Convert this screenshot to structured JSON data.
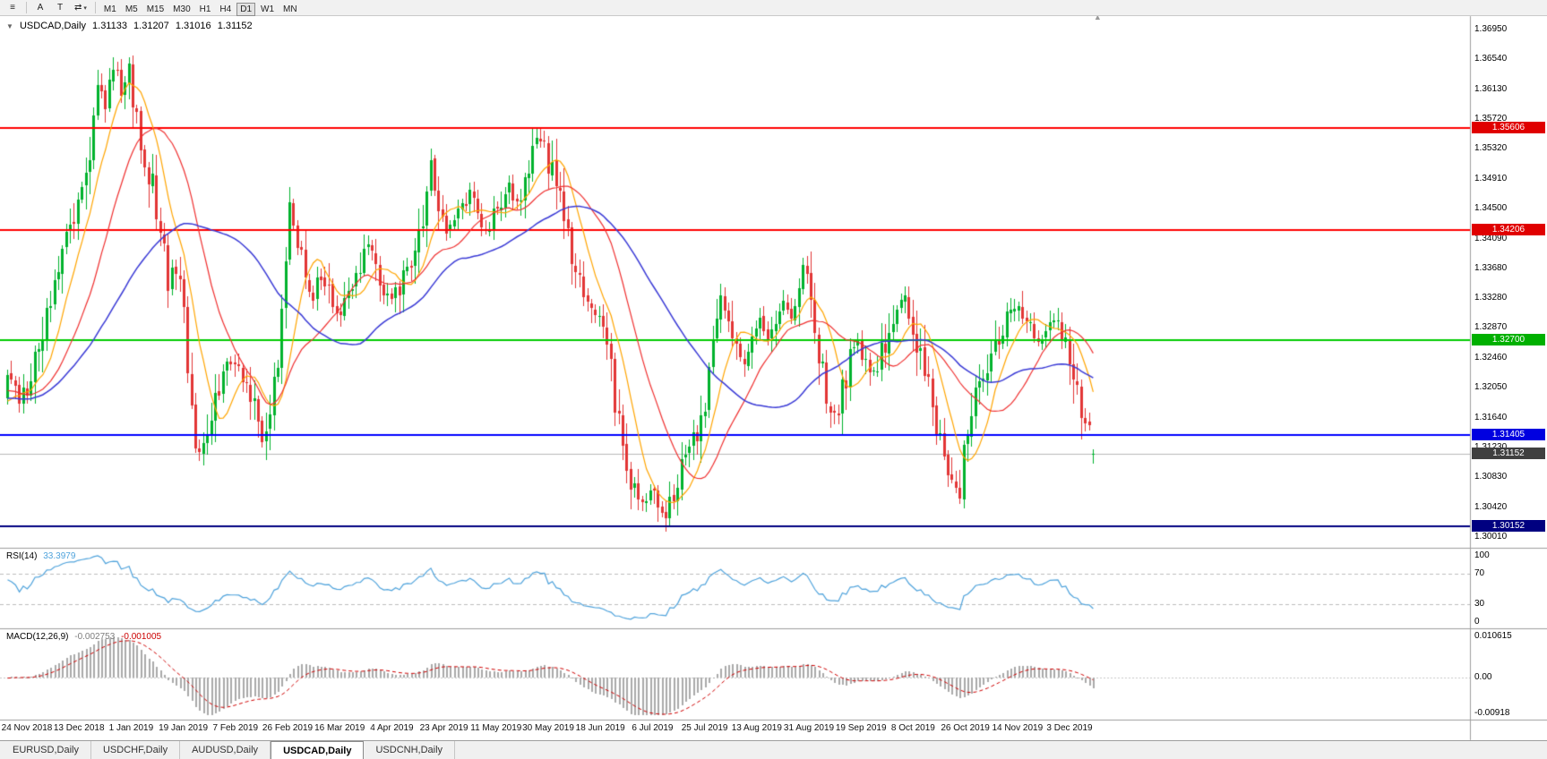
{
  "toolbar": {
    "chart_list_icon_glyph": "≡",
    "annotate_button_label": "A",
    "text_button_label": "T",
    "cursor_icon_glyph": "⇄",
    "dropdown_glyph": "▾",
    "timeframes": [
      {
        "label": "M1",
        "active": false
      },
      {
        "label": "M5",
        "active": false
      },
      {
        "label": "M15",
        "active": false
      },
      {
        "label": "M30",
        "active": false
      },
      {
        "label": "H1",
        "active": false
      },
      {
        "label": "H4",
        "active": false
      },
      {
        "label": "D1",
        "active": true
      },
      {
        "label": "W1",
        "active": false
      },
      {
        "label": "MN",
        "active": false
      }
    ]
  },
  "legend": {
    "collapse_arrow": "▼",
    "symbol_period": "USDCAD,Daily",
    "open": "1.31133",
    "high": "1.31207",
    "low": "1.31016",
    "close": "1.31152"
  },
  "price_axis": {
    "ticks": [
      "1.36950",
      "1.36540",
      "1.36130",
      "1.35720",
      "1.35320",
      "1.34910",
      "1.34500",
      "1.34090",
      "1.33680",
      "1.33280",
      "1.32870",
      "1.32460",
      "1.32050",
      "1.31640",
      "1.31230",
      "1.30830",
      "1.30420",
      "1.30010"
    ]
  },
  "levels": [
    {
      "label": "1.35606",
      "price": 1.35606,
      "color": "#FF0000",
      "badge": "#E00000"
    },
    {
      "label": "1.34206",
      "price": 1.34206,
      "color": "#FF0000",
      "badge": "#E00000"
    },
    {
      "label": "1.32700",
      "price": 1.327,
      "color": "#00CC00",
      "badge": "#00B000"
    },
    {
      "label": "1.31405",
      "price": 1.31405,
      "color": "#0000FF",
      "badge": "#0000E0"
    },
    {
      "label": "1.30152",
      "price": 1.30152,
      "color": "#000080",
      "badge": "#000080"
    }
  ],
  "current_price": {
    "label": "1.31152",
    "price": 1.31152,
    "line_color": "#B9B9B9",
    "badge": "#404040"
  },
  "date_axis": [
    "24 Nov 2018",
    "13 Dec 2018",
    "1 Jan 2019",
    "19 Jan 2019",
    "7 Feb 2019",
    "26 Feb 2019",
    "16 Mar 2019",
    "4 Apr 2019",
    "23 Apr 2019",
    "11 May 2019",
    "30 May 2019",
    "18 Jun 2019",
    "6 Jul 2019",
    "25 Jul 2019",
    "13 Aug 2019",
    "31 Aug 2019",
    "19 Sep 2019",
    "8 Oct 2019",
    "26 Oct 2019",
    "14 Nov 2019",
    "3 Dec 2019"
  ],
  "rsi": {
    "name": "RSI(14)",
    "value": "33.3979",
    "axis": [
      "100",
      "70",
      "30",
      "0"
    ],
    "levels": [
      70,
      30
    ],
    "line_color": "#4FA3DC"
  },
  "macd": {
    "name": "MACD(12,26,9)",
    "main_value": "-0.002753",
    "signal_value": "-0.001005",
    "axis": [
      "0.010615",
      "0.00",
      "-0.00918"
    ],
    "histogram_color": "#AAAAAA",
    "signal_color": "#D00000"
  },
  "tabs": [
    {
      "label": "EURUSD,Daily",
      "active": false
    },
    {
      "label": "USDCHF,Daily",
      "active": false
    },
    {
      "label": "AUDUSD,Daily",
      "active": false
    },
    {
      "label": "USDCAD,Daily",
      "active": true
    },
    {
      "label": "USDCNH,Daily",
      "active": false
    }
  ],
  "shift_marker_glyph": "▲",
  "chart_data": {
    "type": "candlestick",
    "symbol": "USDCAD",
    "timeframe": "Daily",
    "title": "USDCAD,Daily",
    "bars_total": 278,
    "current_bar": {
      "open": 1.31133,
      "high": 1.31207,
      "low": 1.31016,
      "close": 1.31152
    },
    "up_color": "#00B22D",
    "down_color": "#E23535",
    "horizontal_levels": [
      1.35606,
      1.34206,
      1.327,
      1.31405,
      1.30152
    ],
    "ma_overlays": [
      {
        "type": "sma",
        "period": 9,
        "color": "#FFA500"
      },
      {
        "type": "sma",
        "period": 21,
        "color": "#F03030"
      },
      {
        "type": "sma",
        "period": 45,
        "color": "#3A3AD6"
      }
    ],
    "indicators": [
      {
        "name": "RSI",
        "period": 14,
        "current": 33.3979,
        "range": [
          0,
          100
        ],
        "levels": [
          30,
          70
        ]
      },
      {
        "name": "MACD",
        "fast": 12,
        "slow": 26,
        "signal": 9,
        "current_macd": -0.002753,
        "current_signal": -0.001005,
        "scale_max": 0.010615,
        "scale_min": -0.00918
      }
    ],
    "price_path": [
      [
        0,
        1.3232
      ],
      [
        3,
        1.3186
      ],
      [
        6,
        1.3222
      ],
      [
        9,
        1.3282
      ],
      [
        12,
        1.3352
      ],
      [
        15,
        1.3402
      ],
      [
        18,
        1.3452
      ],
      [
        21,
        1.3532
      ],
      [
        23,
        1.3622
      ],
      [
        25,
        1.3592
      ],
      [
        27,
        1.3648
      ],
      [
        29,
        1.3614
      ],
      [
        31,
        1.3642
      ],
      [
        33,
        1.3572
      ],
      [
        35,
        1.352
      ],
      [
        37,
        1.3478
      ],
      [
        39,
        1.3418
      ],
      [
        41,
        1.3352
      ],
      [
        43,
        1.3372
      ],
      [
        45,
        1.3302
      ],
      [
        47,
        1.318
      ],
      [
        49,
        1.3112
      ],
      [
        51,
        1.3132
      ],
      [
        53,
        1.3186
      ],
      [
        55,
        1.3238
      ],
      [
        58,
        1.3242
      ],
      [
        60,
        1.3212
      ],
      [
        63,
        1.3186
      ],
      [
        65,
        1.3136
      ],
      [
        67,
        1.3168
      ],
      [
        69,
        1.3252
      ],
      [
        71,
        1.3372
      ],
      [
        72,
        1.3448
      ],
      [
        74,
        1.3402
      ],
      [
        76,
        1.3352
      ],
      [
        78,
        1.3332
      ],
      [
        80,
        1.3362
      ],
      [
        82,
        1.3342
      ],
      [
        84,
        1.3302
      ],
      [
        86,
        1.3322
      ],
      [
        88,
        1.3342
      ],
      [
        90,
        1.3372
      ],
      [
        92,
        1.3402
      ],
      [
        94,
        1.3372
      ],
      [
        96,
        1.3342
      ],
      [
        98,
        1.3322
      ],
      [
        100,
        1.3342
      ],
      [
        102,
        1.3372
      ],
      [
        104,
        1.3392
      ],
      [
        106,
        1.3422
      ],
      [
        108,
        1.3502
      ],
      [
        110,
        1.3462
      ],
      [
        112,
        1.3412
      ],
      [
        114,
        1.3432
      ],
      [
        116,
        1.3452
      ],
      [
        118,
        1.3472
      ],
      [
        120,
        1.3442
      ],
      [
        122,
        1.3422
      ],
      [
        124,
        1.3442
      ],
      [
        126,
        1.3462
      ],
      [
        128,
        1.3482
      ],
      [
        130,
        1.3452
      ],
      [
        132,
        1.3482
      ],
      [
        134,
        1.3532
      ],
      [
        136,
        1.3545
      ],
      [
        138,
        1.3512
      ],
      [
        140,
        1.3482
      ],
      [
        142,
        1.3432
      ],
      [
        144,
        1.3392
      ],
      [
        146,
        1.3352
      ],
      [
        148,
        1.3322
      ],
      [
        150,
        1.3312
      ],
      [
        152,
        1.3282
      ],
      [
        154,
        1.3222
      ],
      [
        156,
        1.3162
      ],
      [
        158,
        1.3102
      ],
      [
        160,
        1.3062
      ],
      [
        162,
        1.3042
      ],
      [
        164,
        1.3072
      ],
      [
        166,
        1.3042
      ],
      [
        168,
        1.3032
      ],
      [
        170,
        1.3062
      ],
      [
        172,
        1.3092
      ],
      [
        174,
        1.3122
      ],
      [
        176,
        1.3142
      ],
      [
        178,
        1.3192
      ],
      [
        180,
        1.3262
      ],
      [
        182,
        1.3332
      ],
      [
        184,
        1.3302
      ],
      [
        186,
        1.3262
      ],
      [
        188,
        1.3242
      ],
      [
        190,
        1.3282
      ],
      [
        192,
        1.3302
      ],
      [
        194,
        1.3272
      ],
      [
        196,
        1.3302
      ],
      [
        198,
        1.3322
      ],
      [
        200,
        1.3292
      ],
      [
        202,
        1.3332
      ],
      [
        203,
        1.3378
      ],
      [
        205,
        1.3322
      ],
      [
        207,
        1.3252
      ],
      [
        209,
        1.3192
      ],
      [
        211,
        1.3162
      ],
      [
        213,
        1.3202
      ],
      [
        215,
        1.3242
      ],
      [
        217,
        1.3262
      ],
      [
        219,
        1.3242
      ],
      [
        221,
        1.3222
      ],
      [
        223,
        1.3252
      ],
      [
        225,
        1.3282
      ],
      [
        227,
        1.3312
      ],
      [
        229,
        1.3332
      ],
      [
        231,
        1.3292
      ],
      [
        233,
        1.3242
      ],
      [
        235,
        1.3202
      ],
      [
        237,
        1.3152
      ],
      [
        239,
        1.3112
      ],
      [
        241,
        1.3072
      ],
      [
        243,
        1.3062
      ],
      [
        245,
        1.3152
      ],
      [
        247,
        1.3202
      ],
      [
        249,
        1.3222
      ],
      [
        251,
        1.3242
      ],
      [
        253,
        1.3272
      ],
      [
        255,
        1.3302
      ],
      [
        257,
        1.3322
      ],
      [
        259,
        1.3312
      ],
      [
        261,
        1.3292
      ],
      [
        263,
        1.3272
      ],
      [
        265,
        1.3282
      ],
      [
        267,
        1.3292
      ],
      [
        269,
        1.3282
      ],
      [
        271,
        1.3252
      ],
      [
        273,
        1.3202
      ],
      [
        275,
        1.3162
      ],
      [
        277,
        1.3115
      ]
    ]
  }
}
